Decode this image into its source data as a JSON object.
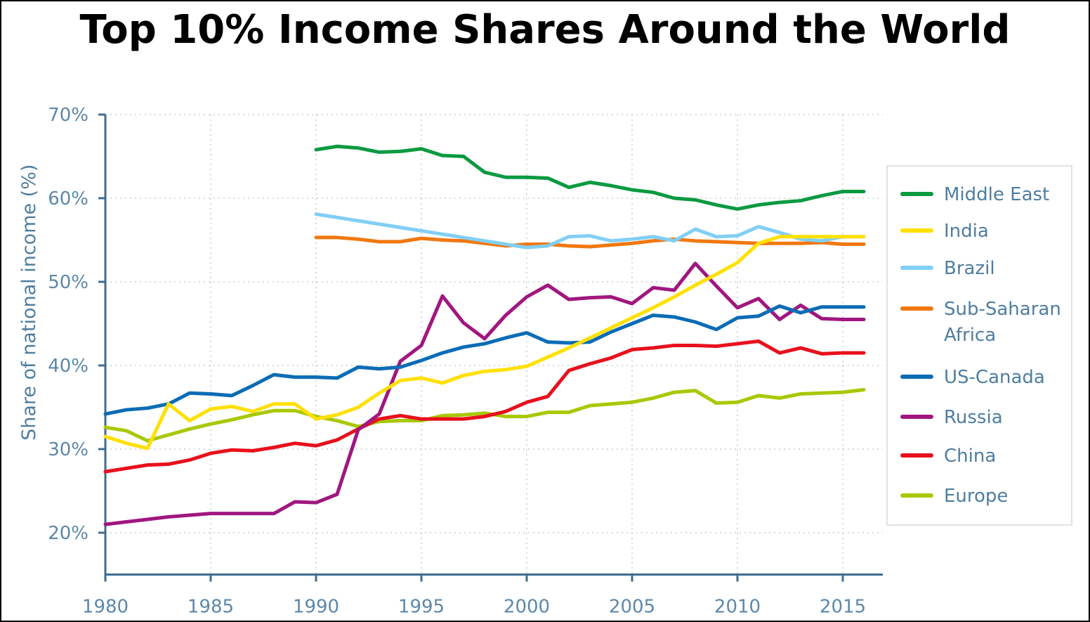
{
  "chart_data": {
    "type": "line",
    "title": "Top 10% Income Shares Around the World",
    "xlabel": "",
    "ylabel": "Share of national income (%)",
    "xlim": [
      1980,
      2016.9
    ],
    "ylim": [
      15,
      70
    ],
    "xticks": [
      1980,
      1985,
      1990,
      1995,
      2000,
      2005,
      2010,
      2015
    ],
    "yticks": [
      20,
      30,
      40,
      50,
      60,
      70
    ],
    "ytick_labels": [
      "20%",
      "30%",
      "40%",
      "50%",
      "60%",
      "70%"
    ],
    "grid": true,
    "legend_position": "right",
    "series": [
      {
        "name": "Middle East",
        "color": "#0b9a40",
        "start": 1990,
        "values": [
          65.8,
          66.2,
          66.0,
          65.5,
          65.6,
          65.9,
          65.1,
          65.0,
          63.1,
          62.5,
          62.5,
          62.4,
          61.3,
          61.9,
          61.5,
          61.0,
          60.7,
          60.0,
          59.8,
          59.2,
          58.7,
          59.2,
          59.5,
          59.7,
          60.3,
          60.8,
          60.8
        ]
      },
      {
        "name": "India",
        "color": "#ffe000",
        "start": 1980,
        "values": [
          31.5,
          30.7,
          30.1,
          35.4,
          33.4,
          34.8,
          35.1,
          34.5,
          35.4,
          35.4,
          33.6,
          34.1,
          35.0,
          36.7,
          38.2,
          38.5,
          37.9,
          38.8,
          39.3,
          39.5,
          39.9,
          41.0,
          42.1,
          43.3,
          44.5,
          45.7,
          46.9,
          48.2,
          49.6,
          50.9,
          52.3,
          54.6,
          55.4,
          55.4,
          55.4,
          55.4,
          55.4
        ]
      },
      {
        "name": "Brazil",
        "color": "#82cff5",
        "start": 1990,
        "values": [
          58.1,
          57.7,
          57.3,
          56.9,
          56.5,
          56.1,
          55.7,
          55.3,
          54.9,
          54.5,
          54.1,
          54.3,
          55.4,
          55.5,
          54.9,
          55.1,
          55.4,
          54.9,
          56.3,
          55.4,
          55.5,
          56.6,
          55.9,
          55.1,
          54.9,
          55.4,
          55.4
        ]
      },
      {
        "name": "Sub-Saharan Africa",
        "legend_lines": [
          "Sub-Saharan",
          "Africa"
        ],
        "color": "#f07810",
        "start": 1990,
        "values": [
          55.3,
          55.3,
          55.1,
          54.8,
          54.8,
          55.2,
          55.0,
          54.9,
          54.6,
          54.3,
          54.5,
          54.5,
          54.3,
          54.2,
          54.4,
          54.6,
          54.9,
          55.1,
          54.9,
          54.8,
          54.7,
          54.6,
          54.6,
          54.6,
          54.7,
          54.5,
          54.5
        ]
      },
      {
        "name": "US-Canada",
        "color": "#0b6cb5",
        "start": 1980,
        "values": [
          34.2,
          34.7,
          34.9,
          35.4,
          36.7,
          36.6,
          36.4,
          37.6,
          38.9,
          38.6,
          38.6,
          38.5,
          39.8,
          39.6,
          39.8,
          40.6,
          41.5,
          42.2,
          42.6,
          43.3,
          43.9,
          42.8,
          42.7,
          42.8,
          44.0,
          45.0,
          46.0,
          45.8,
          45.2,
          44.3,
          45.7,
          45.9,
          47.1,
          46.3,
          47.0,
          47.0,
          47.0
        ]
      },
      {
        "name": "Russia",
        "color": "#a0177f",
        "start": 1980,
        "values": [
          21.0,
          21.3,
          21.6,
          21.9,
          22.1,
          22.3,
          22.3,
          22.3,
          22.3,
          23.7,
          23.6,
          24.6,
          32.3,
          34.2,
          40.5,
          42.4,
          48.3,
          45.1,
          43.2,
          46.0,
          48.2,
          49.6,
          47.9,
          48.1,
          48.2,
          47.4,
          49.3,
          49.0,
          52.2,
          49.5,
          46.9,
          48.0,
          45.5,
          47.2,
          45.6,
          45.5,
          45.5
        ]
      },
      {
        "name": "China",
        "color": "#e8101c",
        "start": 1980,
        "values": [
          27.3,
          27.7,
          28.1,
          28.2,
          28.7,
          29.5,
          29.9,
          29.8,
          30.2,
          30.7,
          30.4,
          31.1,
          32.4,
          33.6,
          34.0,
          33.6,
          33.6,
          33.6,
          33.9,
          34.5,
          35.6,
          36.3,
          39.4,
          40.2,
          40.9,
          41.9,
          42.1,
          42.4,
          42.4,
          42.3,
          42.6,
          42.9,
          41.5,
          42.1,
          41.4,
          41.5,
          41.5
        ]
      },
      {
        "name": "Europe",
        "color": "#a8c800",
        "start": 1980,
        "values": [
          32.6,
          32.2,
          31.0,
          31.7,
          32.4,
          33.0,
          33.5,
          34.1,
          34.6,
          34.6,
          33.9,
          33.4,
          32.7,
          33.3,
          33.4,
          33.4,
          34.0,
          34.1,
          34.3,
          33.9,
          33.9,
          34.4,
          34.4,
          35.2,
          35.4,
          35.6,
          36.1,
          36.8,
          37.0,
          35.5,
          35.6,
          36.4,
          36.1,
          36.6,
          36.7,
          36.8,
          37.1
        ]
      }
    ]
  }
}
